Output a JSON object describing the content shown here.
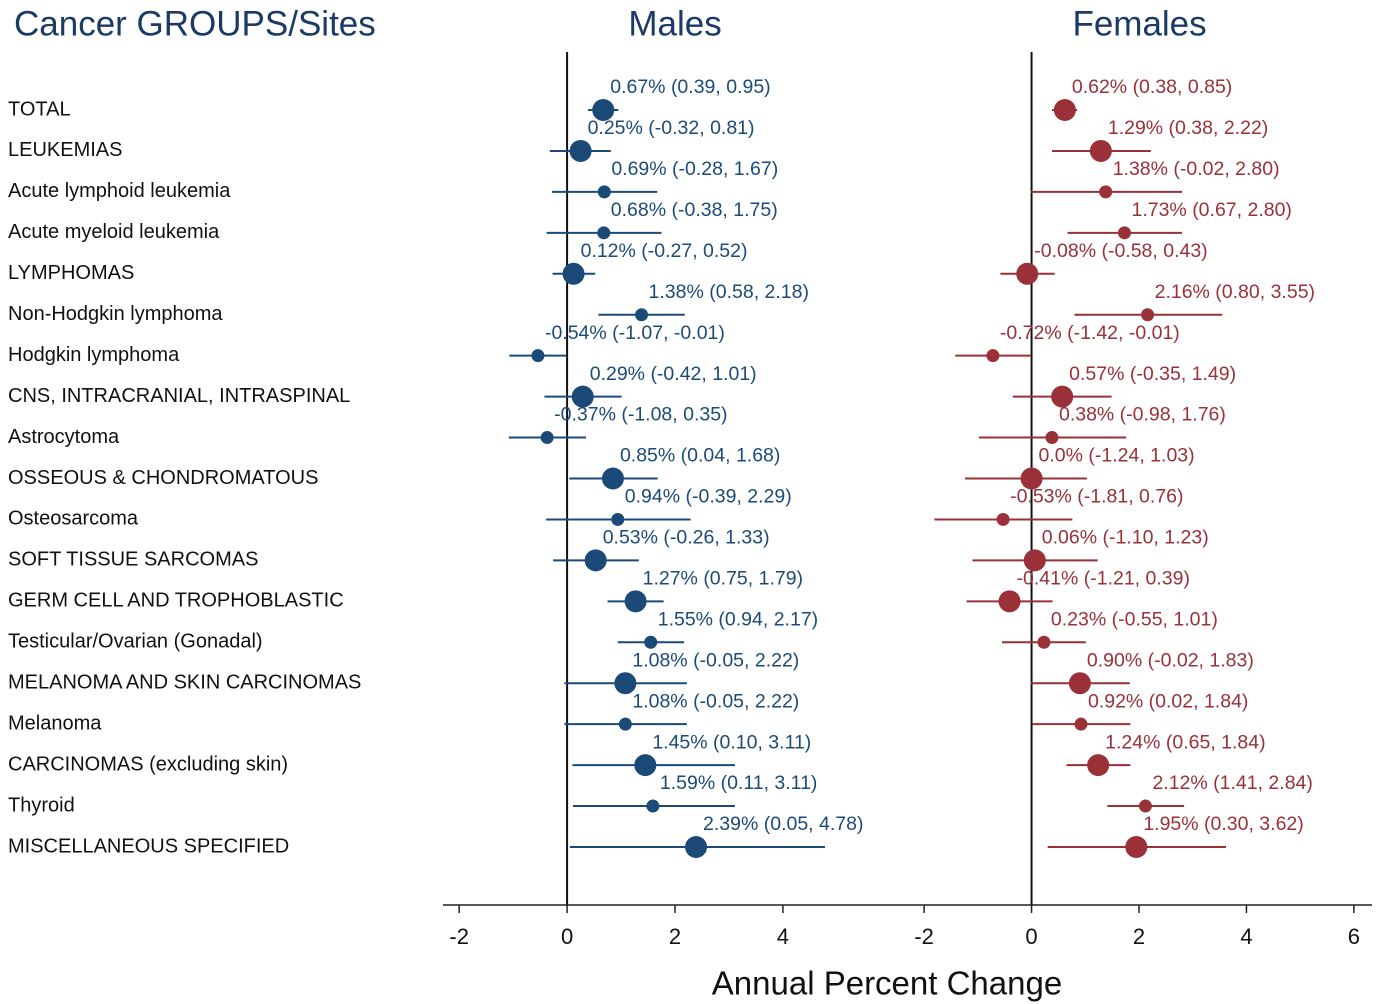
{
  "row_header": "Cancer GROUPS/Sites",
  "xlabel": "Annual Percent Change",
  "categories": [
    "TOTAL",
    "LEUKEMIAS",
    "Acute lymphoid leukemia",
    "Acute myeloid leukemia",
    "LYMPHOMAS",
    "Non-Hodgkin lymphoma",
    "Hodgkin lymphoma",
    "CNS, INTRACRANIAL, INTRASPINAL",
    "Astrocytoma",
    "OSSEOUS & CHONDROMATOUS",
    "Osteosarcoma",
    "SOFT TISSUE SARCOMAS",
    "GERM CELL AND TROPHOBLASTIC",
    "Testicular/Ovarian (Gonadal)",
    "MELANOMA AND SKIN CARCINOMAS",
    "Melanoma",
    "CARCINOMAS (excluding skin)",
    "Thyroid",
    "MISCELLANEOUS SPECIFIED"
  ],
  "chart_data": [
    {
      "type": "forest",
      "title": "Males",
      "color": "#1c4a78",
      "values": [
        0.67,
        0.25,
        0.69,
        0.68,
        0.12,
        1.38,
        -0.54,
        0.29,
        -0.37,
        0.85,
        0.94,
        0.53,
        1.27,
        1.55,
        1.08,
        1.08,
        1.45,
        1.59,
        2.39
      ],
      "lower": [
        0.39,
        -0.32,
        -0.28,
        -0.38,
        -0.27,
        0.58,
        -1.07,
        -0.42,
        -1.08,
        0.04,
        -0.39,
        -0.26,
        0.75,
        0.94,
        -0.05,
        -0.05,
        0.1,
        0.11,
        0.05
      ],
      "upper": [
        0.95,
        0.81,
        1.67,
        1.75,
        0.52,
        2.18,
        -0.01,
        1.01,
        0.35,
        1.68,
        2.29,
        1.33,
        1.79,
        2.17,
        2.22,
        2.22,
        3.11,
        3.11,
        4.78
      ],
      "value_labels": [
        "0.67% (0.39, 0.95)",
        "0.25% (-0.32, 0.81)",
        "0.69% (-0.28, 1.67)",
        "0.68% (-0.38, 1.75)",
        "0.12% (-0.27, 0.52)",
        "1.38% (0.58, 2.18)",
        "-0.54% (-1.07, -0.01)",
        "0.29% (-0.42, 1.01)",
        "-0.37% (-1.08, 0.35)",
        "0.85% (0.04, 1.68)",
        "0.94% (-0.39, 2.29)",
        "0.53% (-0.26, 1.33)",
        "1.27% (0.75, 1.79)",
        "1.55% (0.94, 2.17)",
        "1.08% (-0.05, 2.22)",
        "1.08% (-0.05, 2.22)",
        "1.45% (0.10, 3.11)",
        "1.59% (0.11, 3.11)",
        "2.39% (0.05, 4.78)"
      ],
      "xlim": [
        -2.3,
        6.3
      ],
      "xticks": [
        -2,
        0,
        2,
        4
      ]
    },
    {
      "type": "forest",
      "title": "Females",
      "color": "#9a3038",
      "values": [
        0.62,
        1.29,
        1.38,
        1.73,
        -0.08,
        2.16,
        -0.72,
        0.57,
        0.38,
        0.0,
        -0.53,
        0.06,
        -0.41,
        0.23,
        0.9,
        0.92,
        1.24,
        2.12,
        1.95
      ],
      "lower": [
        0.38,
        0.38,
        -0.02,
        0.67,
        -0.58,
        0.8,
        -1.42,
        -0.35,
        -0.98,
        -1.24,
        -1.81,
        -1.1,
        -1.21,
        -0.55,
        -0.02,
        0.02,
        0.65,
        1.41,
        0.3
      ],
      "upper": [
        0.85,
        2.22,
        2.8,
        2.8,
        0.43,
        3.55,
        -0.01,
        1.49,
        1.76,
        1.03,
        0.76,
        1.23,
        0.39,
        1.01,
        1.83,
        1.84,
        1.84,
        2.84,
        3.62
      ],
      "value_labels": [
        "0.62% (0.38, 0.85)",
        "1.29% (0.38, 2.22)",
        "1.38% (-0.02, 2.80)",
        "1.73% (0.67, 2.80)",
        "-0.08% (-0.58, 0.43)",
        "2.16% (0.80, 3.55)",
        "-0.72% (-1.42, -0.01)",
        "0.57% (-0.35, 1.49)",
        "0.38% (-0.98, 1.76)",
        "0.0% (-1.24, 1.03)",
        "-0.53% (-1.81, 0.76)",
        "0.06% (-1.10, 1.23)",
        "-0.41% (-1.21, 0.39)",
        "0.23% (-0.55, 1.01)",
        "0.90% (-0.02, 1.83)",
        "0.92% (0.02, 1.84)",
        "1.24% (0.65, 1.84)",
        "2.12% (1.41, 2.84)",
        "1.95% (0.30, 3.62)"
      ],
      "xlim": [
        -2.3,
        6.3
      ],
      "xticks": [
        -2,
        0,
        2,
        4,
        6
      ]
    }
  ]
}
